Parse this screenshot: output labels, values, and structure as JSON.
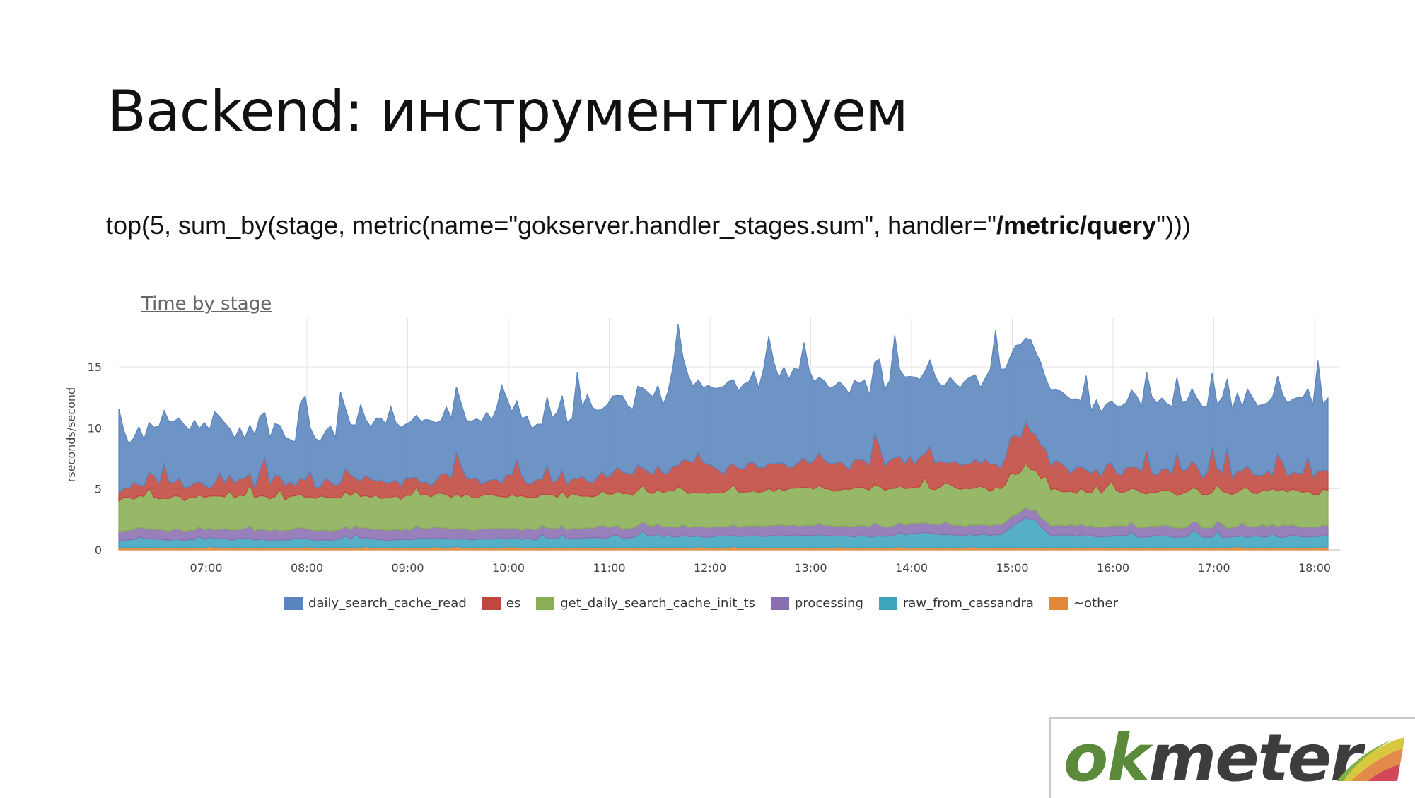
{
  "slide": {
    "title": "Backend: инструментируем",
    "query_prefix": "top(5, sum_by(stage, metric(name=\"gokserver.handler_stages.sum\", handler=\"",
    "query_bold": "/metric/query",
    "query_suffix": "\")))"
  },
  "logo": {
    "part1": "ok",
    "part2": "meter"
  },
  "chart_data": {
    "type": "area",
    "stacked": true,
    "title": "Time by stage",
    "xlabel": "",
    "ylabel": "rseconds/second",
    "ylim": [
      0,
      19
    ],
    "y_ticks": [
      0,
      5,
      10,
      15
    ],
    "x_range": [
      "06:08",
      "18:08"
    ],
    "x_ticks": [
      "07:00",
      "08:00",
      "09:00",
      "10:00",
      "11:00",
      "12:00",
      "13:00",
      "14:00",
      "15:00",
      "16:00",
      "17:00",
      "18:00"
    ],
    "grid": true,
    "legend_position": "bottom",
    "x": [
      "06:08",
      "06:23",
      "06:38",
      "06:53",
      "07:08",
      "07:23",
      "07:38",
      "07:53",
      "08:08",
      "08:23",
      "08:38",
      "08:53",
      "09:08",
      "09:23",
      "09:38",
      "09:53",
      "10:08",
      "10:23",
      "10:38",
      "10:53",
      "11:08",
      "11:23",
      "11:38",
      "11:53",
      "12:08",
      "12:23",
      "12:38",
      "12:53",
      "13:08",
      "13:23",
      "13:38",
      "13:53",
      "14:08",
      "14:23",
      "14:38",
      "14:53",
      "15:08",
      "15:23",
      "15:38",
      "15:53",
      "16:08",
      "16:23",
      "16:38",
      "16:53",
      "17:08",
      "17:23",
      "17:38",
      "17:53",
      "18:08"
    ],
    "series": [
      {
        "name": "~other",
        "color": "#e0883a",
        "values": [
          0.2,
          0.2,
          0.2,
          0.2,
          0.2,
          0.2,
          0.2,
          0.2,
          0.2,
          0.2,
          0.2,
          0.2,
          0.2,
          0.2,
          0.2,
          0.2,
          0.2,
          0.2,
          0.2,
          0.2,
          0.2,
          0.2,
          0.2,
          0.2,
          0.2,
          0.2,
          0.2,
          0.2,
          0.2,
          0.2,
          0.2,
          0.2,
          0.2,
          0.2,
          0.2,
          0.2,
          0.2,
          0.2,
          0.2,
          0.2,
          0.2,
          0.2,
          0.2,
          0.2,
          0.2,
          0.2,
          0.2,
          0.2,
          0.2
        ]
      },
      {
        "name": "raw_from_cassandra",
        "color": "#3ea4be",
        "values": [
          0.6,
          0.7,
          0.6,
          0.6,
          0.7,
          0.7,
          0.6,
          0.7,
          0.6,
          0.7,
          0.7,
          0.6,
          0.7,
          0.7,
          0.6,
          0.7,
          0.7,
          0.7,
          0.7,
          0.8,
          0.8,
          0.9,
          0.9,
          0.9,
          0.9,
          0.9,
          1.0,
          1.0,
          1.0,
          0.9,
          0.9,
          1.0,
          1.2,
          1.0,
          1.0,
          1.0,
          2.5,
          1.0,
          1.0,
          0.9,
          0.9,
          0.9,
          0.9,
          0.9,
          0.8,
          0.9,
          0.8,
          0.9,
          0.9
        ]
      },
      {
        "name": "processing",
        "color": "#8a6fb0",
        "values": [
          0.8,
          0.8,
          0.8,
          0.8,
          0.8,
          0.8,
          0.8,
          0.8,
          0.8,
          0.8,
          0.8,
          0.8,
          0.8,
          0.8,
          0.8,
          0.8,
          0.8,
          0.8,
          0.8,
          0.8,
          0.8,
          0.8,
          0.8,
          0.8,
          0.8,
          0.8,
          0.8,
          0.8,
          0.8,
          0.8,
          0.8,
          0.8,
          0.8,
          0.8,
          0.8,
          0.8,
          0.8,
          0.8,
          0.8,
          0.8,
          0.8,
          0.8,
          0.8,
          0.8,
          0.8,
          0.8,
          0.8,
          0.8,
          0.8
        ]
      },
      {
        "name": "get_daily_search_cache_init_ts",
        "color": "#8aae54",
        "values": [
          2.6,
          2.7,
          2.6,
          2.7,
          2.6,
          2.7,
          2.7,
          2.6,
          2.7,
          2.7,
          2.7,
          2.7,
          2.7,
          2.7,
          2.7,
          2.7,
          2.7,
          2.6,
          2.7,
          2.7,
          2.8,
          2.8,
          2.8,
          2.8,
          2.8,
          2.9,
          2.9,
          3.0,
          3.0,
          3.0,
          3.1,
          3.0,
          3.0,
          3.0,
          3.0,
          2.9,
          3.5,
          2.9,
          2.8,
          2.8,
          2.8,
          2.8,
          2.8,
          2.8,
          2.8,
          2.8,
          2.8,
          2.8,
          2.8
        ]
      },
      {
        "name": "es",
        "color": "#c0473e",
        "values": [
          1.0,
          1.1,
          1.0,
          1.0,
          1.0,
          1.1,
          1.0,
          1.0,
          1.1,
          1.5,
          1.2,
          1.3,
          1.2,
          1.4,
          1.3,
          1.3,
          1.3,
          1.4,
          1.3,
          1.5,
          1.6,
          1.7,
          1.8,
          3.0,
          1.8,
          2.0,
          2.2,
          2.0,
          2.5,
          2.0,
          1.9,
          2.5,
          2.0,
          2.1,
          2.0,
          2.0,
          3.5,
          2.0,
          1.8,
          1.7,
          1.6,
          1.7,
          1.6,
          1.7,
          1.6,
          1.6,
          1.5,
          1.6,
          1.6
        ]
      },
      {
        "name": "daily_search_cache_read",
        "color": "#5a84bd",
        "values": [
          4.2,
          4.3,
          4.5,
          4.6,
          4.4,
          3.8,
          4.0,
          3.9,
          4.0,
          4.4,
          4.6,
          4.7,
          4.8,
          4.9,
          5.0,
          5.1,
          5.2,
          5.0,
          5.4,
          5.6,
          5.8,
          6.0,
          6.2,
          6.6,
          6.6,
          6.9,
          7.4,
          7.7,
          6.3,
          5.9,
          6.4,
          6.9,
          6.9,
          6.6,
          6.5,
          6.5,
          7.3,
          6.1,
          5.6,
          5.5,
          5.8,
          5.9,
          5.8,
          5.7,
          5.9,
          5.7,
          5.8,
          5.8,
          5.8
        ]
      }
    ],
    "spikes": [
      {
        "time": "11:40",
        "value": 18.5
      },
      {
        "time": "12:35",
        "value": 17.5
      },
      {
        "time": "12:55",
        "value": 17.0
      },
      {
        "time": "14:50",
        "value": 18.0
      },
      {
        "time": "17:00",
        "value": 14.5
      },
      {
        "time": "09:55",
        "value": 13.5
      }
    ]
  }
}
